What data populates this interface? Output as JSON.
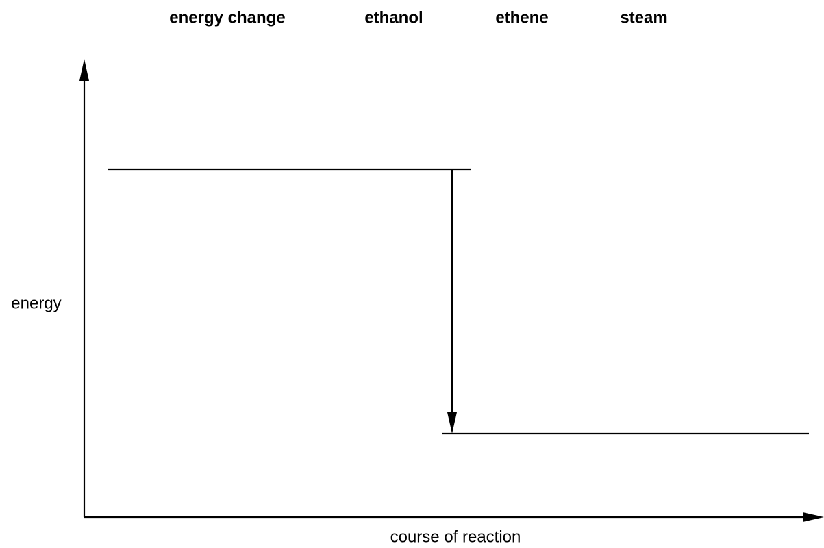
{
  "word_bank": [
    "energy change",
    "ethanol",
    "ethene",
    "steam"
  ],
  "axes": {
    "y_label": "energy",
    "x_label": "course of reaction"
  }
}
